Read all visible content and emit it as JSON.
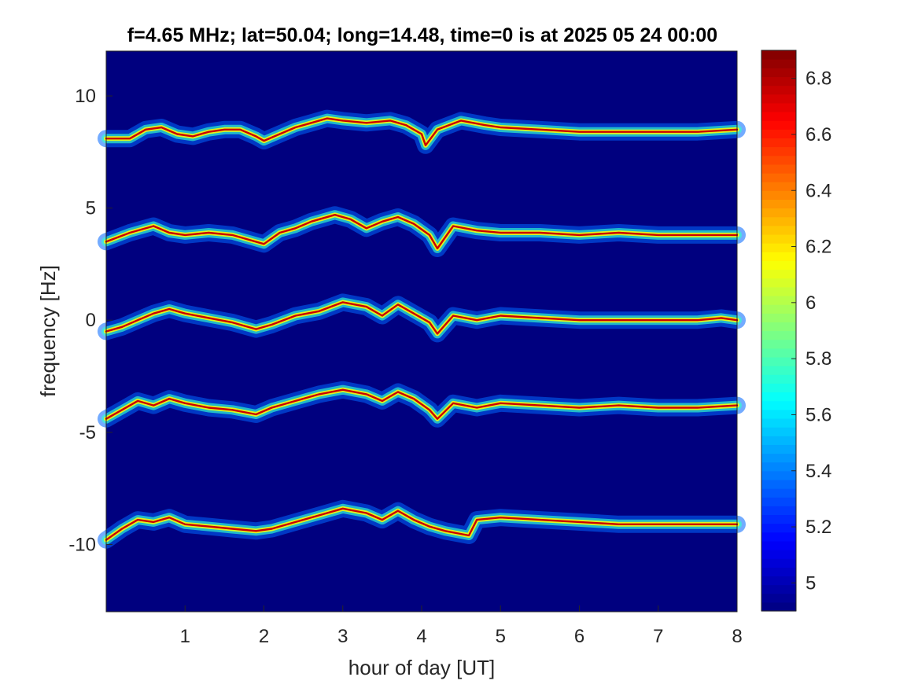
{
  "chart_data": {
    "type": "heatmap",
    "title": "f=4.65 MHz;  lat=50.04; long=14.48, time=0 is at 2025 05 24 00:00",
    "xlabel": "hour of day [UT]",
    "ylabel": "frequency [Hz]",
    "xlim": [
      0,
      8
    ],
    "ylim": [
      -13,
      12
    ],
    "x_ticks": [
      1,
      2,
      3,
      4,
      5,
      6,
      7,
      8
    ],
    "x_tick_labels": [
      "1",
      "2",
      "3",
      "4",
      "5",
      "6",
      "7",
      "8"
    ],
    "y_ticks": [
      -10,
      -5,
      0,
      5,
      10
    ],
    "y_tick_labels": [
      "-10",
      "-5",
      "0",
      "5",
      "10"
    ],
    "colorbar": {
      "colormap": "jet",
      "clim": [
        4.9,
        6.9
      ],
      "ticks": [
        5,
        5.2,
        5.4,
        5.6,
        5.8,
        6,
        6.2,
        6.4,
        6.6,
        6.8
      ],
      "tick_labels": [
        "5",
        "5.2",
        "5.4",
        "5.6",
        "5.8",
        "6",
        "6.2",
        "6.4",
        "6.6",
        "6.8"
      ]
    },
    "background_value": 4.9,
    "traces": [
      {
        "offset_hz": 8.3,
        "points": [
          [
            0,
            8.1
          ],
          [
            0.3,
            8.1
          ],
          [
            0.5,
            8.5
          ],
          [
            0.7,
            8.6
          ],
          [
            0.9,
            8.3
          ],
          [
            1.1,
            8.2
          ],
          [
            1.3,
            8.4
          ],
          [
            1.5,
            8.5
          ],
          [
            1.7,
            8.5
          ],
          [
            1.9,
            8.2
          ],
          [
            2.0,
            8.0
          ],
          [
            2.2,
            8.3
          ],
          [
            2.4,
            8.6
          ],
          [
            2.6,
            8.8
          ],
          [
            2.8,
            9.0
          ],
          [
            3.0,
            8.9
          ],
          [
            3.3,
            8.8
          ],
          [
            3.6,
            8.9
          ],
          [
            3.8,
            8.7
          ],
          [
            4.0,
            8.3
          ],
          [
            4.05,
            7.8
          ],
          [
            4.2,
            8.5
          ],
          [
            4.5,
            8.9
          ],
          [
            4.8,
            8.7
          ],
          [
            5.0,
            8.6
          ],
          [
            5.5,
            8.5
          ],
          [
            6.0,
            8.4
          ],
          [
            6.5,
            8.4
          ],
          [
            7.0,
            8.4
          ],
          [
            7.5,
            8.4
          ],
          [
            8.0,
            8.5
          ]
        ]
      },
      {
        "offset_hz": 3.8,
        "points": [
          [
            0,
            3.5
          ],
          [
            0.3,
            3.9
          ],
          [
            0.6,
            4.2
          ],
          [
            0.8,
            3.9
          ],
          [
            1.0,
            3.8
          ],
          [
            1.3,
            3.9
          ],
          [
            1.6,
            3.8
          ],
          [
            1.8,
            3.6
          ],
          [
            2.0,
            3.4
          ],
          [
            2.2,
            3.9
          ],
          [
            2.4,
            4.1
          ],
          [
            2.6,
            4.4
          ],
          [
            2.9,
            4.7
          ],
          [
            3.1,
            4.5
          ],
          [
            3.3,
            4.1
          ],
          [
            3.5,
            4.4
          ],
          [
            3.7,
            4.6
          ],
          [
            3.9,
            4.3
          ],
          [
            4.1,
            3.8
          ],
          [
            4.2,
            3.2
          ],
          [
            4.4,
            4.2
          ],
          [
            4.7,
            4.0
          ],
          [
            5.0,
            3.9
          ],
          [
            5.5,
            3.9
          ],
          [
            6.0,
            3.8
          ],
          [
            6.5,
            3.9
          ],
          [
            7.0,
            3.8
          ],
          [
            7.5,
            3.8
          ],
          [
            8.0,
            3.8
          ]
        ]
      },
      {
        "offset_hz": 0.0,
        "points": [
          [
            0,
            -0.5
          ],
          [
            0.2,
            -0.3
          ],
          [
            0.4,
            0.0
          ],
          [
            0.6,
            0.3
          ],
          [
            0.8,
            0.5
          ],
          [
            1.0,
            0.3
          ],
          [
            1.3,
            0.1
          ],
          [
            1.6,
            -0.1
          ],
          [
            1.9,
            -0.4
          ],
          [
            2.1,
            -0.2
          ],
          [
            2.4,
            0.2
          ],
          [
            2.7,
            0.4
          ],
          [
            3.0,
            0.8
          ],
          [
            3.3,
            0.6
          ],
          [
            3.5,
            0.2
          ],
          [
            3.7,
            0.7
          ],
          [
            3.9,
            0.3
          ],
          [
            4.1,
            -0.1
          ],
          [
            4.2,
            -0.6
          ],
          [
            4.4,
            0.2
          ],
          [
            4.7,
            0.0
          ],
          [
            5.0,
            0.2
          ],
          [
            5.5,
            0.1
          ],
          [
            6.0,
            0.0
          ],
          [
            6.5,
            0.0
          ],
          [
            7.0,
            0.0
          ],
          [
            7.5,
            0.0
          ],
          [
            7.8,
            0.1
          ],
          [
            8.0,
            0.0
          ]
        ]
      },
      {
        "offset_hz": -3.9,
        "points": [
          [
            0,
            -4.4
          ],
          [
            0.2,
            -4.0
          ],
          [
            0.4,
            -3.6
          ],
          [
            0.6,
            -3.8
          ],
          [
            0.8,
            -3.5
          ],
          [
            1.0,
            -3.7
          ],
          [
            1.3,
            -3.9
          ],
          [
            1.6,
            -4.0
          ],
          [
            1.9,
            -4.2
          ],
          [
            2.1,
            -3.9
          ],
          [
            2.4,
            -3.6
          ],
          [
            2.7,
            -3.3
          ],
          [
            3.0,
            -3.1
          ],
          [
            3.3,
            -3.3
          ],
          [
            3.5,
            -3.6
          ],
          [
            3.7,
            -3.2
          ],
          [
            3.9,
            -3.5
          ],
          [
            4.1,
            -4.0
          ],
          [
            4.2,
            -4.4
          ],
          [
            4.4,
            -3.7
          ],
          [
            4.7,
            -3.9
          ],
          [
            5.0,
            -3.7
          ],
          [
            5.5,
            -3.8
          ],
          [
            6.0,
            -3.9
          ],
          [
            6.5,
            -3.8
          ],
          [
            7.0,
            -3.9
          ],
          [
            7.5,
            -3.9
          ],
          [
            8.0,
            -3.8
          ]
        ]
      },
      {
        "offset_hz": -9.1,
        "points": [
          [
            0,
            -9.8
          ],
          [
            0.2,
            -9.3
          ],
          [
            0.4,
            -8.9
          ],
          [
            0.6,
            -9.0
          ],
          [
            0.8,
            -8.8
          ],
          [
            1.0,
            -9.1
          ],
          [
            1.3,
            -9.2
          ],
          [
            1.6,
            -9.3
          ],
          [
            1.9,
            -9.4
          ],
          [
            2.1,
            -9.3
          ],
          [
            2.4,
            -9.0
          ],
          [
            2.7,
            -8.7
          ],
          [
            3.0,
            -8.4
          ],
          [
            3.3,
            -8.6
          ],
          [
            3.5,
            -8.9
          ],
          [
            3.7,
            -8.5
          ],
          [
            3.9,
            -8.9
          ],
          [
            4.1,
            -9.2
          ],
          [
            4.3,
            -9.4
          ],
          [
            4.6,
            -9.6
          ],
          [
            4.7,
            -8.9
          ],
          [
            5.0,
            -8.8
          ],
          [
            5.5,
            -8.9
          ],
          [
            6.0,
            -9.0
          ],
          [
            6.5,
            -9.1
          ],
          [
            7.0,
            -9.1
          ],
          [
            7.5,
            -9.1
          ],
          [
            8.0,
            -9.1
          ]
        ]
      }
    ]
  }
}
